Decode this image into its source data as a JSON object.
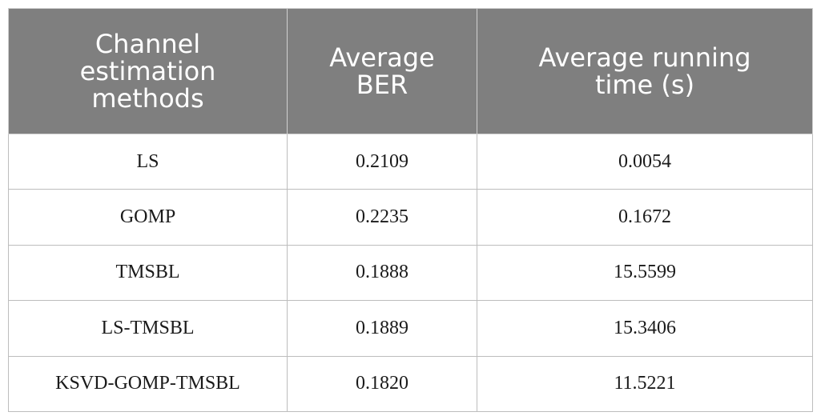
{
  "table": {
    "headers": [
      "Channel\nestimation\nmethods",
      "Average\nBER",
      "Average running\ntime (s)"
    ],
    "rows": [
      [
        "LS",
        "0.2109",
        "0.0054"
      ],
      [
        "GOMP",
        "0.2235",
        "0.1672"
      ],
      [
        "TMSBL",
        "0.1888",
        "15.5599"
      ],
      [
        "LS-TMSBL",
        "0.1889",
        "15.3406"
      ],
      [
        "KSVD-GOMP-TMSBL",
        "0.1820",
        "11.5221"
      ]
    ]
  },
  "colors": {
    "header_background": "#7f7f7f",
    "header_text": "#ffffff",
    "border": "#bdbdbd"
  }
}
